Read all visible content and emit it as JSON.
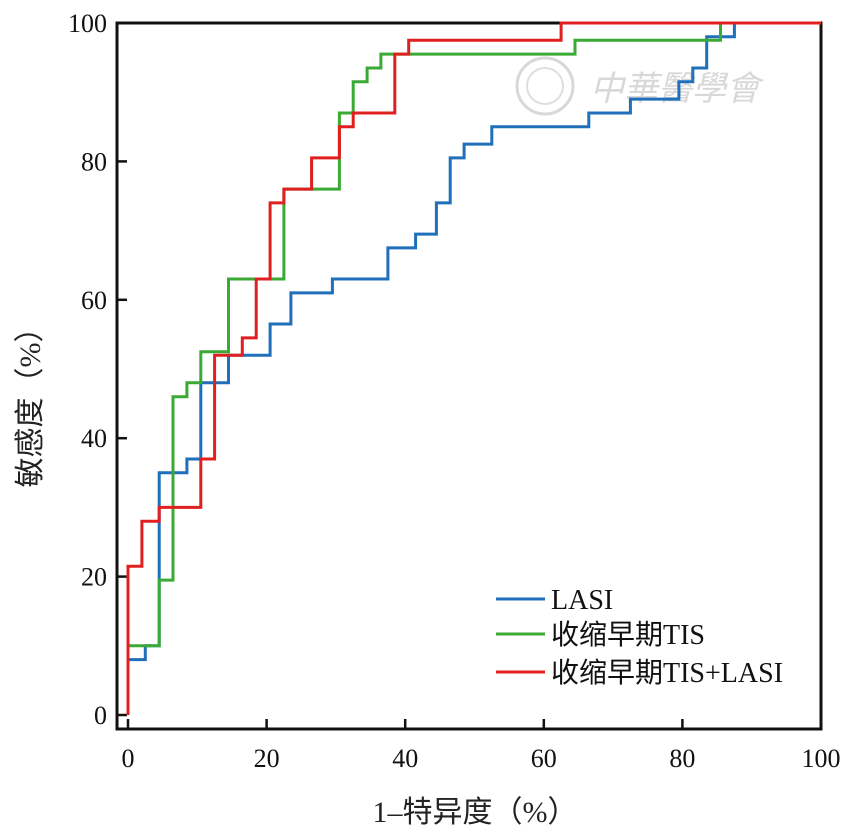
{
  "chart_data": {
    "type": "line",
    "xlabel": "1–特异度（%）",
    "ylabel": "敏感度（%）",
    "xlim": [
      0,
      100
    ],
    "ylim": [
      0,
      100
    ],
    "xticks": [
      0,
      20,
      40,
      60,
      80,
      100
    ],
    "yticks": [
      0,
      20,
      40,
      60,
      80,
      100
    ],
    "grid": false,
    "legend_position": "bottom-right",
    "watermark": "中華醫學會",
    "series": [
      {
        "name": "LASI",
        "color": "#1f6fba",
        "points": [
          [
            0,
            0
          ],
          [
            0,
            8
          ],
          [
            2.5,
            8
          ],
          [
            2.5,
            10
          ],
          [
            4.5,
            10
          ],
          [
            4.5,
            35
          ],
          [
            8.5,
            35
          ],
          [
            8.5,
            37
          ],
          [
            10.5,
            37
          ],
          [
            10.5,
            48
          ],
          [
            14.5,
            48
          ],
          [
            14.5,
            52
          ],
          [
            18.5,
            52
          ],
          [
            18.5,
            52
          ],
          [
            20.5,
            52
          ],
          [
            20.5,
            56.5
          ],
          [
            23.5,
            56.5
          ],
          [
            23.5,
            61
          ],
          [
            29.5,
            61
          ],
          [
            29.5,
            63
          ],
          [
            37.5,
            63
          ],
          [
            37.5,
            67.5
          ],
          [
            41.5,
            67.5
          ],
          [
            41.5,
            69.5
          ],
          [
            44.5,
            69.5
          ],
          [
            44.5,
            74
          ],
          [
            46.5,
            74
          ],
          [
            46.5,
            80.5
          ],
          [
            48.5,
            80.5
          ],
          [
            48.5,
            82.5
          ],
          [
            52.5,
            82.5
          ],
          [
            52.5,
            85
          ],
          [
            66.5,
            85
          ],
          [
            66.5,
            87
          ],
          [
            72.5,
            87
          ],
          [
            72.5,
            89
          ],
          [
            79.5,
            89
          ],
          [
            79.5,
            91.5
          ],
          [
            81.5,
            91.5
          ],
          [
            81.5,
            93.5
          ],
          [
            83.5,
            93.5
          ],
          [
            83.5,
            98
          ],
          [
            87.5,
            98
          ],
          [
            87.5,
            100
          ],
          [
            100,
            100
          ]
        ]
      },
      {
        "name": "收缩早期TIS",
        "color": "#3aaa35",
        "points": [
          [
            0,
            0
          ],
          [
            0,
            10
          ],
          [
            4.5,
            10
          ],
          [
            4.5,
            19.5
          ],
          [
            6.5,
            19.5
          ],
          [
            6.5,
            46
          ],
          [
            8.5,
            46
          ],
          [
            8.5,
            48
          ],
          [
            10.5,
            48
          ],
          [
            10.5,
            52.5
          ],
          [
            12.5,
            52.5
          ],
          [
            12.5,
            52.5
          ],
          [
            14.5,
            52.5
          ],
          [
            14.5,
            63
          ],
          [
            20.5,
            63
          ],
          [
            20.5,
            63
          ],
          [
            22.5,
            63
          ],
          [
            22.5,
            76
          ],
          [
            30.5,
            76
          ],
          [
            30.5,
            87
          ],
          [
            32.5,
            87
          ],
          [
            32.5,
            91.5
          ],
          [
            34.5,
            91.5
          ],
          [
            34.5,
            93.5
          ],
          [
            36.5,
            93.5
          ],
          [
            36.5,
            95.5
          ],
          [
            64.5,
            95.5
          ],
          [
            64.5,
            97.5
          ],
          [
            85.5,
            97.5
          ],
          [
            85.5,
            100
          ],
          [
            100,
            100
          ]
        ]
      },
      {
        "name": "收缩早期TIS+LASI",
        "color": "#e02020",
        "points": [
          [
            0,
            0
          ],
          [
            0,
            21.5
          ],
          [
            2,
            21.5
          ],
          [
            2,
            28
          ],
          [
            4.5,
            28
          ],
          [
            4.5,
            30
          ],
          [
            10.5,
            30
          ],
          [
            10.5,
            37
          ],
          [
            12.5,
            37
          ],
          [
            12.5,
            52
          ],
          [
            16.5,
            52
          ],
          [
            16.5,
            54.5
          ],
          [
            18.5,
            54.5
          ],
          [
            18.5,
            63
          ],
          [
            20.5,
            63
          ],
          [
            20.5,
            74
          ],
          [
            22.5,
            74
          ],
          [
            22.5,
            76
          ],
          [
            26.5,
            76
          ],
          [
            26.5,
            80.5
          ],
          [
            30.5,
            80.5
          ],
          [
            30.5,
            85
          ],
          [
            32.5,
            85
          ],
          [
            32.5,
            87
          ],
          [
            38.5,
            87
          ],
          [
            38.5,
            95.5
          ],
          [
            40.5,
            95.5
          ],
          [
            40.5,
            97.5
          ],
          [
            62.5,
            97.5
          ],
          [
            62.5,
            100
          ],
          [
            100,
            100
          ]
        ]
      }
    ]
  }
}
